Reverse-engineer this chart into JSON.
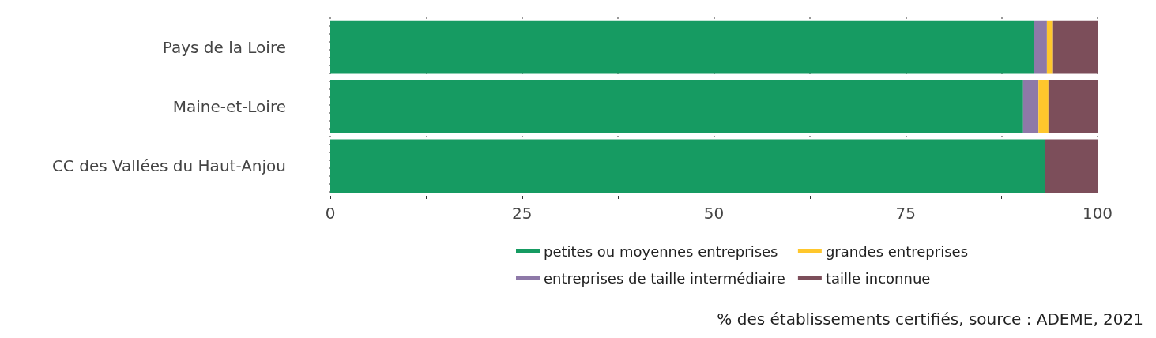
{
  "chart_data": {
    "type": "bar",
    "orientation": "horizontal",
    "stacked": true,
    "categories": [
      "Pays de la Loire",
      "Maine-et-Loire",
      "CC des Vallées du Haut-Anjou"
    ],
    "series": [
      {
        "name": "petites ou moyennes entreprises",
        "color": "#169b62",
        "values": [
          91.7,
          90.3,
          93.2
        ]
      },
      {
        "name": "entreprises de taille intermédiaire",
        "color": "#8e79a8",
        "values": [
          1.7,
          2.0,
          0
        ]
      },
      {
        "name": "grandes entreprises",
        "color": "#ffc72c",
        "values": [
          0.8,
          1.3,
          0
        ]
      },
      {
        "name": "taille inconnue",
        "color": "#7c4e5a",
        "values": [
          5.8,
          6.4,
          6.8
        ]
      }
    ],
    "xlim": [
      0,
      100
    ],
    "xticks": [
      0,
      {
        "value": 12.5,
        "label": null
      },
      25,
      {
        "value": 37.5,
        "label": null
      },
      50,
      {
        "value": 62.5,
        "label": null
      },
      75,
      {
        "value": 87.5,
        "label": null
      },
      100
    ],
    "grid": "x",
    "legend": "bottom",
    "annotations": [
      "% des établissements certifiés, source : ADEME, 2021"
    ]
  }
}
